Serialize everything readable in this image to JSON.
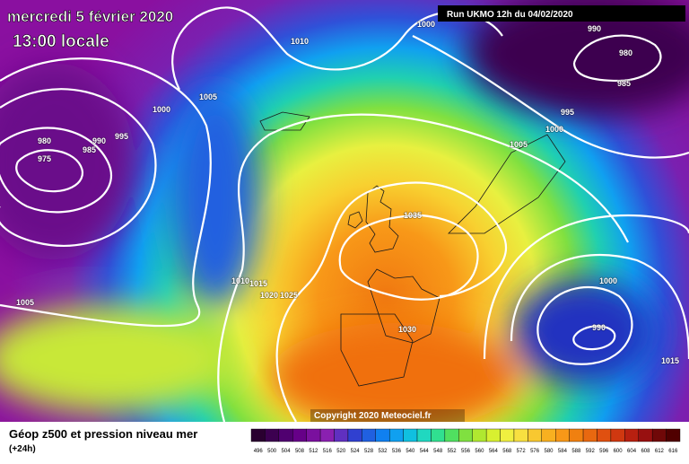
{
  "header": {
    "title": "mercredi 5 février 2020",
    "subtitle": "13:00 locale",
    "run": "Run UKMO 12h du 04/02/2020"
  },
  "copyright": "Copyright 2020 Meteociel.fr",
  "footer": {
    "title": "Géop z500 et pression niveau mer",
    "note": "(+24h)"
  },
  "isobar_labels": [
    "1010",
    "1005",
    "1000",
    "995",
    "990",
    "985",
    "980",
    "975",
    "1000",
    "990",
    "980",
    "985",
    "995",
    "1000",
    "1005",
    "1035",
    "1010",
    "1015",
    "1020",
    "1025",
    "1005",
    "1030",
    "1000",
    "990",
    "1015"
  ],
  "legend": {
    "labels": [
      496,
      500,
      504,
      508,
      512,
      516,
      520,
      524,
      528,
      532,
      536,
      540,
      544,
      548,
      552,
      556,
      560,
      564,
      568,
      572,
      576,
      580,
      584,
      588,
      592,
      596,
      600,
      604,
      608,
      612,
      616
    ],
    "colors": [
      "#2a0030",
      "#3c0050",
      "#500070",
      "#660088",
      "#7a109e",
      "#8a20b0",
      "#6030c0",
      "#3040d0",
      "#2060e0",
      "#1080f0",
      "#10a0f0",
      "#10c0e0",
      "#20d8c0",
      "#30e090",
      "#50e060",
      "#80e040",
      "#b0e830",
      "#d8f030",
      "#f0f040",
      "#f8e040",
      "#f8c830",
      "#f8b020",
      "#f89818",
      "#f08010",
      "#e86810",
      "#e05010",
      "#d03810",
      "#b82010",
      "#981010",
      "#700808",
      "#500000"
    ]
  }
}
